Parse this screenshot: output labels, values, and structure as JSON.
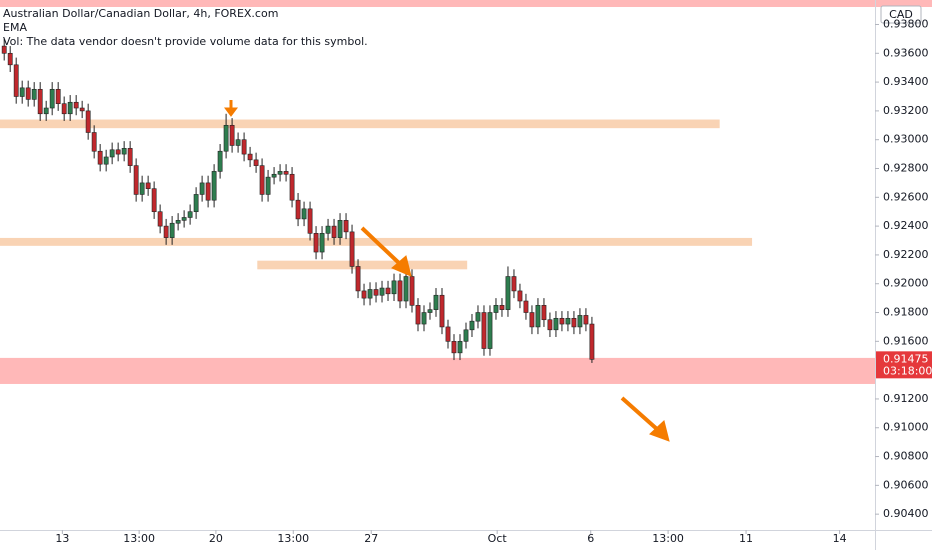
{
  "chart_data": {
    "type": "candlestick",
    "title": "Australian Dollar/Canadian Dollar, 4h, FOREX.com",
    "indicator": "EMA",
    "note": "Vol: The data vendor doesn't provide volume data for this symbol.",
    "currency": "CAD",
    "open": [
      0.9365,
      0.936,
      0.9352,
      0.933,
      0.9336,
      0.9328,
      0.9335,
      0.9318,
      0.9322,
      0.9335,
      0.9325,
      0.9318,
      0.9326,
      0.9322,
      0.932,
      0.9305,
      0.9292,
      0.9283,
      0.9288,
      0.9293,
      0.929,
      0.9294,
      0.9282,
      0.9262,
      0.927,
      0.9266,
      0.925,
      0.924,
      0.9232,
      0.9242,
      0.9244,
      0.9246,
      0.925,
      0.9262,
      0.927,
      0.9258,
      0.9278,
      0.9292,
      0.931,
      0.9296,
      0.93,
      0.929,
      0.9286,
      0.9282,
      0.9262,
      0.9274,
      0.9276,
      0.9278,
      0.9276,
      0.9258,
      0.9245,
      0.9252,
      0.9235,
      0.9222,
      0.9235,
      0.924,
      0.9232,
      0.9244,
      0.9236,
      0.9212,
      0.9195,
      0.919,
      0.9196,
      0.9192,
      0.9197,
      0.9193,
      0.9202,
      0.9188,
      0.9205,
      0.9185,
      0.9172,
      0.918,
      0.9182,
      0.9192,
      0.917,
      0.916,
      0.9152,
      0.916,
      0.9168,
      0.9174,
      0.918,
      0.9155,
      0.918,
      0.9185,
      0.9182,
      0.9205,
      0.9195,
      0.9188,
      0.918,
      0.917,
      0.9185,
      0.9175,
      0.9168,
      0.9176,
      0.9172,
      0.9176,
      0.917,
      0.9178,
      0.9172
    ],
    "high": [
      0.937,
      0.9365,
      0.9357,
      0.9341,
      0.9341,
      0.934,
      0.934,
      0.9327,
      0.934,
      0.934,
      0.933,
      0.9331,
      0.9331,
      0.9327,
      0.9325,
      0.931,
      0.9297,
      0.9293,
      0.9298,
      0.9298,
      0.9299,
      0.9299,
      0.9287,
      0.9275,
      0.9275,
      0.9271,
      0.9255,
      0.9245,
      0.9247,
      0.9249,
      0.9251,
      0.9255,
      0.9267,
      0.9275,
      0.9275,
      0.9283,
      0.9297,
      0.9318,
      0.9315,
      0.9305,
      0.9305,
      0.9295,
      0.9291,
      0.9287,
      0.9279,
      0.9281,
      0.9283,
      0.9283,
      0.9281,
      0.9263,
      0.9257,
      0.9257,
      0.924,
      0.924,
      0.9245,
      0.9245,
      0.9249,
      0.9249,
      0.9241,
      0.9217,
      0.92,
      0.9201,
      0.9201,
      0.9202,
      0.9202,
      0.9207,
      0.9207,
      0.9212,
      0.921,
      0.919,
      0.9185,
      0.9187,
      0.9197,
      0.9197,
      0.9175,
      0.9165,
      0.9165,
      0.9173,
      0.9179,
      0.9185,
      0.9185,
      0.9185,
      0.919,
      0.919,
      0.9212,
      0.921,
      0.92,
      0.9193,
      0.9185,
      0.919,
      0.919,
      0.918,
      0.9181,
      0.9181,
      0.9181,
      0.9181,
      0.9183,
      0.9183,
      0.9177
    ],
    "low": [
      0.9355,
      0.9347,
      0.9325,
      0.9325,
      0.9323,
      0.9323,
      0.9313,
      0.9313,
      0.9317,
      0.932,
      0.9313,
      0.9313,
      0.9317,
      0.9315,
      0.93,
      0.9287,
      0.9278,
      0.9278,
      0.9283,
      0.9285,
      0.9285,
      0.9277,
      0.9257,
      0.9257,
      0.9261,
      0.9245,
      0.9235,
      0.9227,
      0.9227,
      0.9237,
      0.9239,
      0.9241,
      0.9245,
      0.9257,
      0.9253,
      0.9253,
      0.9273,
      0.9287,
      0.9291,
      0.9291,
      0.9285,
      0.9281,
      0.9277,
      0.9257,
      0.9257,
      0.9269,
      0.9271,
      0.9271,
      0.9253,
      0.924,
      0.924,
      0.923,
      0.9217,
      0.9217,
      0.923,
      0.9227,
      0.9227,
      0.9231,
      0.9207,
      0.919,
      0.9185,
      0.9185,
      0.9187,
      0.9187,
      0.9188,
      0.9188,
      0.9183,
      0.9183,
      0.918,
      0.9167,
      0.9167,
      0.9175,
      0.9177,
      0.9165,
      0.9155,
      0.9147,
      0.9147,
      0.9155,
      0.9163,
      0.9169,
      0.915,
      0.915,
      0.9175,
      0.9177,
      0.9177,
      0.919,
      0.9183,
      0.9175,
      0.9165,
      0.9165,
      0.917,
      0.9163,
      0.9163,
      0.9167,
      0.9167,
      0.9165,
      0.9165,
      0.9167,
      0.9145
    ],
    "close": [
      0.936,
      0.9352,
      0.933,
      0.9336,
      0.9328,
      0.9335,
      0.9318,
      0.9322,
      0.9335,
      0.9325,
      0.9318,
      0.9326,
      0.9322,
      0.932,
      0.9305,
      0.9292,
      0.9283,
      0.9288,
      0.9293,
      0.929,
      0.9294,
      0.9282,
      0.9262,
      0.927,
      0.9266,
      0.925,
      0.924,
      0.9232,
      0.9242,
      0.9244,
      0.9246,
      0.925,
      0.9262,
      0.927,
      0.9258,
      0.9278,
      0.9292,
      0.931,
      0.9296,
      0.93,
      0.929,
      0.9286,
      0.9282,
      0.9262,
      0.9274,
      0.9276,
      0.9278,
      0.9276,
      0.9258,
      0.9245,
      0.9252,
      0.9235,
      0.9222,
      0.9235,
      0.924,
      0.9232,
      0.9244,
      0.9236,
      0.9212,
      0.9195,
      0.919,
      0.9196,
      0.9192,
      0.9197,
      0.9193,
      0.9202,
      0.9188,
      0.9205,
      0.9185,
      0.9172,
      0.918,
      0.9182,
      0.9192,
      0.917,
      0.916,
      0.9152,
      0.916,
      0.9168,
      0.9174,
      0.918,
      0.9155,
      0.918,
      0.9185,
      0.9182,
      0.9205,
      0.9195,
      0.9188,
      0.918,
      0.917,
      0.9185,
      0.9175,
      0.9168,
      0.9176,
      0.9172,
      0.9176,
      0.917,
      0.9178,
      0.9172,
      0.91475
    ],
    "up_color": "#2e7d4f",
    "down_color": "#c0282d",
    "last_price": 0.91475,
    "countdown": "03:18:00",
    "zones": [
      {
        "range": [
          0.9308,
          0.9314
        ],
        "span": [
          -0.7,
          119.3
        ],
        "color": "#f9d3b4"
      },
      {
        "range": [
          0.92263,
          0.92318
        ],
        "span": [
          -0.7,
          124.7
        ],
        "color": "#f9d3b4"
      },
      {
        "range": [
          0.921,
          0.9216
        ],
        "span": [
          42.2,
          77.2
        ],
        "color": "#f9d3b4"
      },
      {
        "range": [
          0.91304,
          0.91485
        ],
        "span": [
          -0.7,
          145.2
        ],
        "color": "#ffb8b8"
      }
    ],
    "xlim": [
      -0.7,
      145.2
    ],
    "xticks": [
      {
        "value": 9.7,
        "label": "13"
      },
      {
        "value": 22.5,
        "label": "13:00"
      },
      {
        "value": 35.3,
        "label": "20"
      },
      {
        "value": 48.2,
        "label": "13:00"
      },
      {
        "value": 61.2,
        "label": "27"
      },
      {
        "value": 82.2,
        "label": "Oct"
      },
      {
        "value": 97.8,
        "label": "6"
      },
      {
        "value": 110.7,
        "label": "13:00"
      },
      {
        "value": 123.7,
        "label": "11"
      },
      {
        "value": 139.3,
        "label": "14"
      }
    ],
    "ylim": [
      0.9029,
      0.9397
    ],
    "yticks": [
      {
        "value": 0.938,
        "label": "0.93800"
      },
      {
        "value": 0.936,
        "label": "0.93600"
      },
      {
        "value": 0.934,
        "label": "0.93400"
      },
      {
        "value": 0.932,
        "label": "0.93200"
      },
      {
        "value": 0.93,
        "label": "0.93000"
      },
      {
        "value": 0.928,
        "label": "0.92800"
      },
      {
        "value": 0.926,
        "label": "0.92600"
      },
      {
        "value": 0.924,
        "label": "0.92400"
      },
      {
        "value": 0.922,
        "label": "0.92200"
      },
      {
        "value": 0.92,
        "label": "0.92000"
      },
      {
        "value": 0.918,
        "label": "0.91800"
      },
      {
        "value": 0.916,
        "label": "0.91600"
      },
      {
        "value": 0.912,
        "label": "0.91200"
      },
      {
        "value": 0.91,
        "label": "0.91000"
      },
      {
        "value": 0.908,
        "label": "0.90800"
      },
      {
        "value": 0.906,
        "label": "0.90600"
      },
      {
        "value": 0.904,
        "label": "0.90400"
      }
    ]
  }
}
